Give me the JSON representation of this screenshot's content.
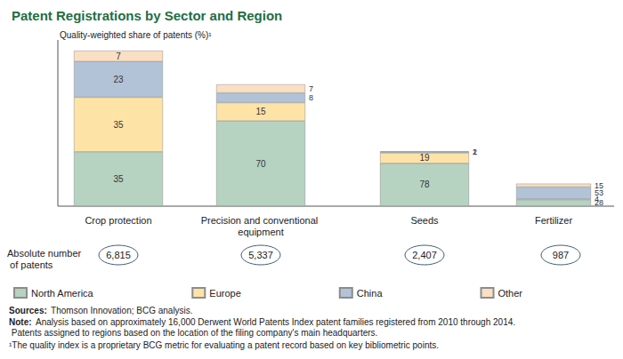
{
  "chart_data": {
    "type": "bar",
    "title": "Patent Registrations by Sector and Region",
    "ylabel": "Quality-weighted share of patents (%)¹",
    "categories": [
      "Crop protection",
      "Precision and conventional equipment",
      "Seeds",
      "Fertilizer"
    ],
    "series": [
      {
        "name": "North America",
        "color": "#b6d2c1",
        "values": [
          35,
          70,
          78,
          28
        ]
      },
      {
        "name": "Europe",
        "color": "#fde4a6",
        "values": [
          35,
          15,
          19,
          4
        ]
      },
      {
        "name": "China",
        "color": "#b2c3d7",
        "values": [
          23,
          8,
          2,
          53
        ]
      },
      {
        "name": "Other",
        "color": "#fbdfc4",
        "values": [
          7,
          7,
          1,
          15
        ]
      }
    ],
    "ylim": [
      0,
      100
    ],
    "stacked": true,
    "data_labels": true,
    "tick_labels": "x",
    "grid": false,
    "legend": "bottom",
    "totals": {
      "label": "Absolute number of patents",
      "values": [
        6815,
        5337,
        2407,
        987
      ],
      "value_labels": [
        "6,815",
        "5,337",
        "2,407",
        "987"
      ]
    },
    "notes": [
      "Sources: Thomson Innovation; BCG analysis.",
      "Note: Analysis based on approximately 16,000 Derwent World Patents Index patent families registered from 2010 through 2014. Patents assigned to regions based on the location of the filing company's main headquarters.",
      "¹The quality index is a proprietary BCG metric for evaluating a patent record based on key bibliometric points."
    ]
  }
}
